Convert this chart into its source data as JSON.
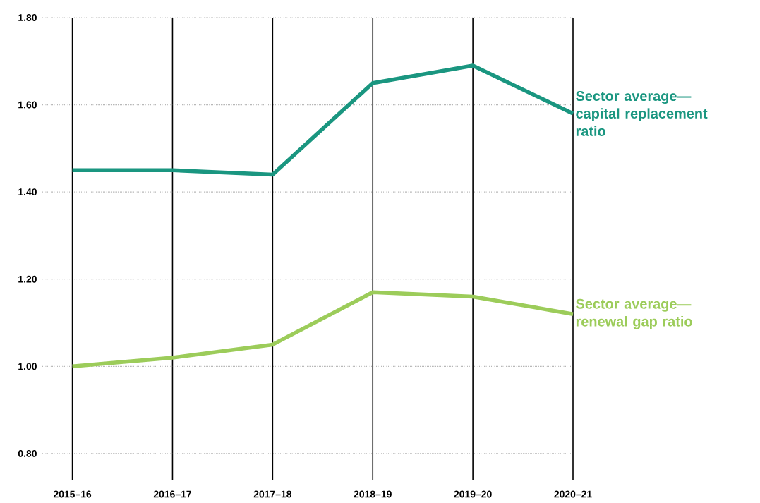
{
  "chart_data": {
    "type": "line",
    "categories": [
      "2015–16",
      "2016–17",
      "2017–18",
      "2018–19",
      "2019–20",
      "2020–21"
    ],
    "series": [
      {
        "name": "Sector average—capital replacement ratio",
        "color": "#1a9680",
        "values": [
          1.45,
          1.45,
          1.44,
          1.65,
          1.69,
          1.58
        ]
      },
      {
        "name": "Sector average—renewal gap ratio",
        "color": "#9ccc5a",
        "values": [
          1.0,
          1.02,
          1.05,
          1.17,
          1.16,
          1.12
        ]
      }
    ],
    "ylim": [
      0.74,
      1.8
    ],
    "yticks": [
      {
        "value": 0.8,
        "label": "0.80"
      },
      {
        "value": 1.0,
        "label": "1.00"
      },
      {
        "value": 1.2,
        "label": "1.20"
      },
      {
        "value": 1.4,
        "label": "1.40"
      },
      {
        "value": 1.6,
        "label": "1.60"
      },
      {
        "value": 1.8,
        "label": "1.80"
      }
    ],
    "grid": true,
    "legend": false,
    "marker": "none",
    "line_style": "solid"
  }
}
